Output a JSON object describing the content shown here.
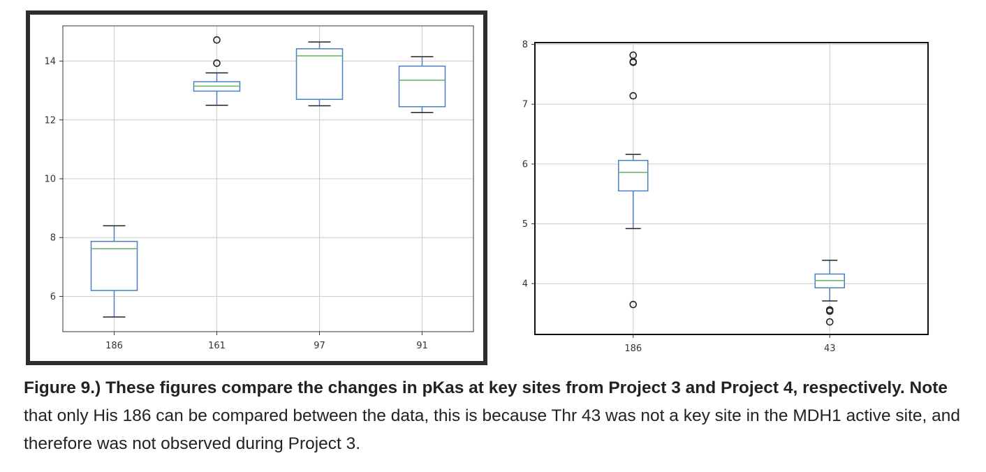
{
  "chart_data": [
    {
      "type": "boxplot",
      "categories": [
        "186",
        "161",
        "97",
        "91"
      ],
      "ylim": [
        4.8,
        15.2
      ],
      "yticks": [
        6,
        8,
        10,
        12,
        14
      ],
      "ytick_labels": [
        "6",
        "8",
        "10",
        "12",
        "14"
      ],
      "grid": true,
      "boxes": [
        {
          "label": "186",
          "whislo": 5.3,
          "q1": 6.2,
          "med": 7.62,
          "q3": 7.87,
          "whishi": 8.4,
          "fliers": []
        },
        {
          "label": "161",
          "whislo": 12.5,
          "q1": 12.98,
          "med": 13.15,
          "q3": 13.3,
          "whishi": 13.6,
          "fliers": [
            13.93,
            14.72
          ]
        },
        {
          "label": "97",
          "whislo": 12.48,
          "q1": 12.7,
          "med": 14.18,
          "q3": 14.42,
          "whishi": 14.65,
          "fliers": []
        },
        {
          "label": "91",
          "whislo": 12.25,
          "q1": 12.45,
          "med": 13.35,
          "q3": 13.83,
          "whishi": 14.15,
          "fliers": []
        }
      ],
      "colors": {
        "box": "#4a7fc1",
        "median": "#5cb85c",
        "grid": "#cccccc",
        "frame": "#2d2d2d"
      }
    },
    {
      "type": "boxplot",
      "categories": [
        "186",
        "43"
      ],
      "ylim": [
        3.15,
        8.03
      ],
      "yticks": [
        4,
        5,
        6,
        7,
        8
      ],
      "ytick_labels": [
        "4",
        "5",
        "6",
        "7",
        "8"
      ],
      "grid": true,
      "boxes": [
        {
          "label": "186",
          "whislo": 4.92,
          "q1": 5.55,
          "med": 5.86,
          "q3": 6.06,
          "whishi": 6.16,
          "fliers": [
            3.65,
            7.14,
            7.7,
            7.71,
            7.82
          ]
        },
        {
          "label": "43",
          "whislo": 3.71,
          "q1": 3.93,
          "med": 4.05,
          "q3": 4.16,
          "whishi": 4.39,
          "fliers": [
            3.36,
            3.54,
            3.56
          ]
        }
      ],
      "colors": {
        "box": "#4a7fc1",
        "median": "#5cb85c",
        "grid": "#cccccc"
      }
    }
  ],
  "caption": {
    "bold": "Figure 9.) These figures compare the changes in pKas at key sites from Project 3 and Project 4, respectively. Note",
    "rest": " that only His 186 can be compared between the data, this is because Thr 43 was not a key site in the MDH1 active site, and therefore was not observed during Project 3."
  }
}
